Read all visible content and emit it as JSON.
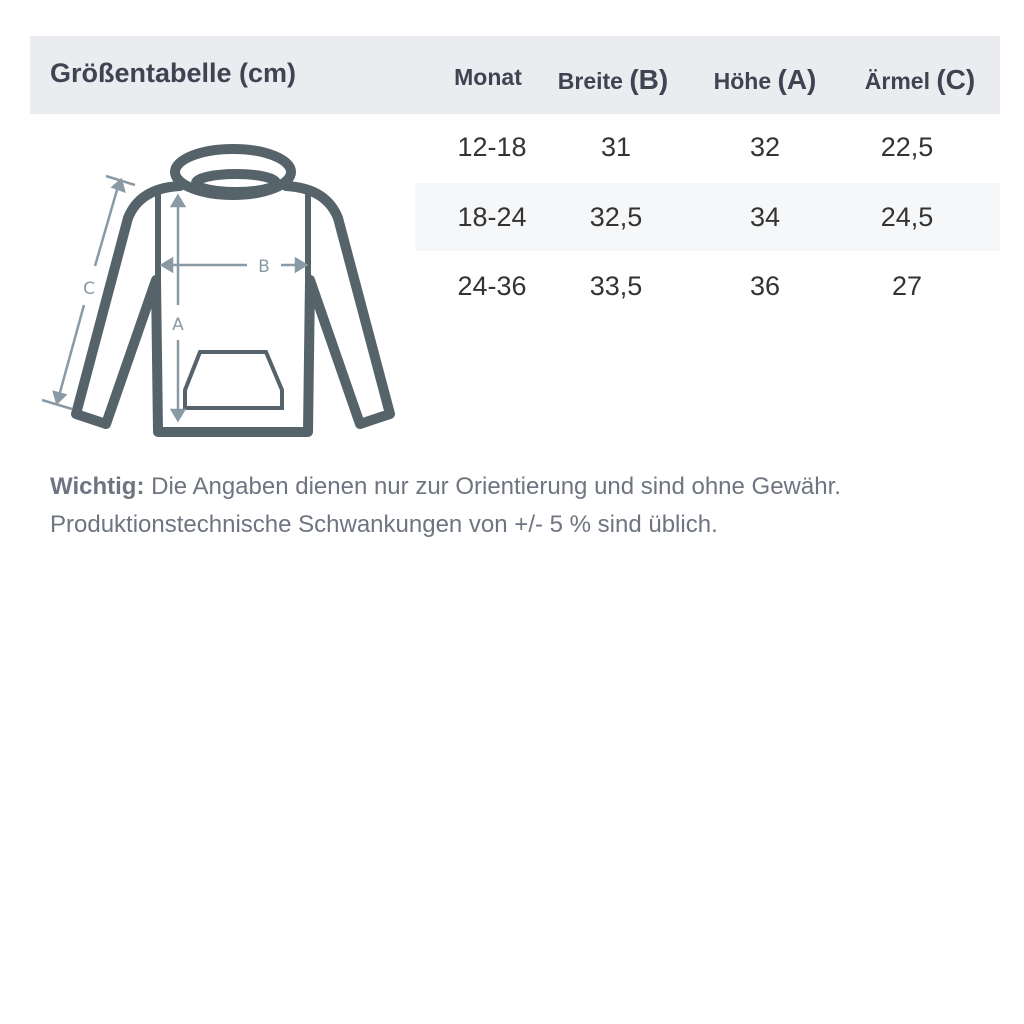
{
  "header": {
    "title": "Größentabelle (cm)",
    "columns": [
      {
        "label": "Monat",
        "letter": ""
      },
      {
        "label": "Breite ",
        "letter": "(B)"
      },
      {
        "label": "Höhe ",
        "letter": "(A)"
      },
      {
        "label": "Ärmel ",
        "letter": "(C)"
      }
    ]
  },
  "rows": [
    [
      "12-18",
      "31",
      "32",
      "22,5"
    ],
    [
      "18-24",
      "32,5",
      "34",
      "24,5"
    ],
    [
      "24-36",
      "33,5",
      "36",
      "27"
    ]
  ],
  "diagram": {
    "labels": {
      "a": "A",
      "b": "B",
      "c": "C"
    },
    "icon": "hoodie-icon",
    "outline_color": "#56636a",
    "arrow_color": "#8a9aa5"
  },
  "note": {
    "bold": "Wichtig:",
    "line1": " Die Angaben dienen nur zur Orientierung und sind ohne Gewähr.",
    "line2": "Produktionstechnische Schwankungen von +/- 5 % sind üblich."
  }
}
